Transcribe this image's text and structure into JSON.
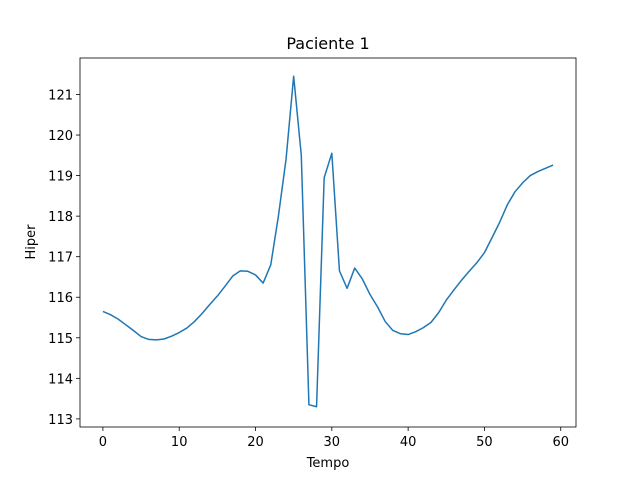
{
  "chart_data": {
    "type": "line",
    "title": "Paciente 1",
    "xlabel": "Tempo",
    "ylabel": "Hiper",
    "xlim": [
      -3,
      62
    ],
    "ylim": [
      112.8,
      121.9
    ],
    "xticks": [
      0,
      10,
      20,
      30,
      40,
      50,
      60
    ],
    "yticks": [
      113,
      114,
      115,
      116,
      117,
      118,
      119,
      120,
      121
    ],
    "grid": false,
    "line_color": "#1f77b4",
    "series": [
      {
        "x": [
          0,
          1,
          2,
          3,
          4,
          5,
          6,
          7,
          8,
          9,
          10,
          11,
          12,
          13,
          14,
          15,
          16,
          17,
          18,
          19,
          20,
          21,
          22,
          23,
          24,
          25,
          26,
          27,
          28,
          29,
          30,
          31,
          32,
          33,
          34,
          35,
          36,
          37,
          38,
          39,
          40,
          41,
          42,
          43,
          44,
          45,
          46,
          47,
          48,
          49,
          50,
          51,
          52,
          53,
          54,
          55,
          56,
          57,
          58,
          59
        ],
        "values": [
          115.65,
          115.57,
          115.46,
          115.32,
          115.18,
          115.03,
          114.96,
          114.95,
          114.97,
          115.04,
          115.13,
          115.24,
          115.4,
          115.6,
          115.82,
          116.03,
          116.27,
          116.52,
          116.65,
          116.64,
          116.55,
          116.35,
          116.8,
          118.0,
          119.4,
          121.45,
          119.5,
          113.35,
          113.3,
          118.95,
          119.55,
          116.65,
          116.22,
          116.72,
          116.45,
          116.07,
          115.76,
          115.4,
          115.18,
          115.1,
          115.08,
          115.15,
          115.25,
          115.38,
          115.62,
          115.93,
          116.18,
          116.42,
          116.64,
          116.85,
          117.1,
          117.47,
          117.85,
          118.28,
          118.6,
          118.82,
          119.0,
          119.1,
          119.18,
          119.26
        ]
      }
    ]
  }
}
